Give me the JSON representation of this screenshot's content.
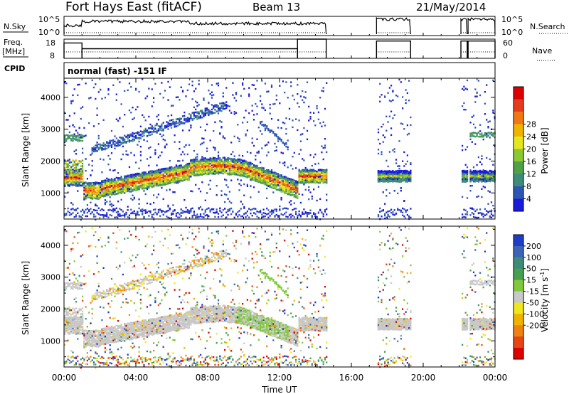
{
  "header": {
    "title": "Fort Hays East (fitACF)",
    "beam": "Beam 13",
    "date": "21/May/2014"
  },
  "strips": {
    "nsky_label": "N.Sky",
    "nsky_ticks": [
      "10^5",
      "10^0"
    ],
    "nsearch_label": "N.Search",
    "nsearch_ticks": [
      "10^5",
      "10^0"
    ],
    "freq_label_line1": "Freq.",
    "freq_label_line2": "[MHz]",
    "freq_ticks": [
      "18",
      "8"
    ],
    "nave_label": "Nave",
    "nave_ticks": [
      "60",
      "0"
    ],
    "cpid_label": "CPID",
    "cpid_text": "normal (fast) -151 IF"
  },
  "chart_data": [
    {
      "type": "heatmap",
      "name": "power-panel",
      "ylabel": "Slant Range [km]",
      "yticks": [
        "1000",
        "2000",
        "3000",
        "4000"
      ],
      "ylim": [
        180,
        4600
      ],
      "xlim_hours": [
        0,
        24
      ],
      "colorbar": {
        "label": "Power [dB]",
        "ticks": [
          "4",
          "8",
          "12",
          "16",
          "20",
          "24",
          "28"
        ],
        "colors": [
          "#1a1adc",
          "#2d55b4",
          "#3c8c78",
          "#50a046",
          "#8cc832",
          "#e6e61e",
          "#f0b400",
          "#f07814",
          "#e63c1e",
          "#dc0000"
        ]
      }
    },
    {
      "type": "heatmap",
      "name": "velocity-panel",
      "ylabel": "Slant Range [km]",
      "yticks": [
        "1000",
        "2000",
        "3000",
        "4000"
      ],
      "ylim": [
        180,
        4600
      ],
      "xlim_hours": [
        0,
        24
      ],
      "colorbar": {
        "label": "Velocity [m s",
        "label_sup": "-1",
        "label_end": "]",
        "ticks": [
          "200",
          "100",
          "50",
          "15",
          "-15",
          "-50",
          "-100",
          "-200"
        ],
        "colors": [
          "#1e3cc8",
          "#3c64b4",
          "#3c8c78",
          "#46a050",
          "#82c83c",
          "#c8c8c8",
          "#f0e61e",
          "#f0b400",
          "#f08214",
          "#e64614",
          "#dc0000"
        ]
      }
    }
  ],
  "xaxis": {
    "ticks": [
      "00:00",
      "04:00",
      "08:00",
      "12:00",
      "16:00",
      "20:00",
      "00:00"
    ],
    "label": "Time UT"
  }
}
